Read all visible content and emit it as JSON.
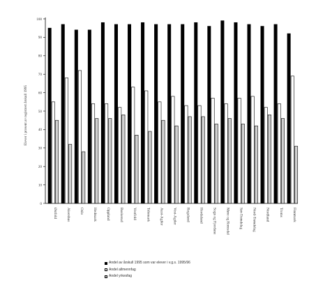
{
  "chart_data": {
    "type": "bar",
    "ylabel": "Elever i prosent av registrert årskull 1995",
    "ylim": [
      0,
      100
    ],
    "yticks": [
      0,
      10,
      20,
      30,
      40,
      50,
      60,
      70,
      80,
      90,
      100
    ],
    "grid": false,
    "legend_position": "bottom",
    "categories": [
      "Østfold",
      "Akershus",
      "Oslo",
      "Hedmark",
      "Oppland",
      "Buskerud",
      "Vestfold",
      "Telemark",
      "Aust-Agder",
      "Vest-Agder",
      "Rogaland",
      "Hordaland",
      "Sogn og Fjordane",
      "Møre og Romsdal",
      "Sør-Trøndelag",
      "Nord-Trøndelag",
      "Nordland",
      "Troms",
      "Finnmark"
    ],
    "series": [
      {
        "name": "Andel av årskull 1995 som var elever i v.g.s. 1995/96",
        "color": "#000000",
        "values": [
          95,
          97,
          94,
          94,
          98,
          97,
          97,
          98,
          97,
          97,
          97,
          98,
          96,
          99,
          98,
          97,
          96,
          97,
          92
        ]
      },
      {
        "name": "Andel allmennfag",
        "color": "#ffffff",
        "values": [
          55,
          68,
          72,
          54,
          54,
          52,
          63,
          61,
          55,
          58,
          53,
          53,
          57,
          54,
          57,
          58,
          52,
          54,
          69
        ]
      },
      {
        "name": "Andel yrkesfag",
        "color": "#d0d0d0",
        "values": [
          45,
          32,
          28,
          46,
          46,
          48,
          37,
          39,
          45,
          42,
          47,
          47,
          43,
          46,
          43,
          42,
          48,
          46,
          31
        ]
      }
    ]
  }
}
